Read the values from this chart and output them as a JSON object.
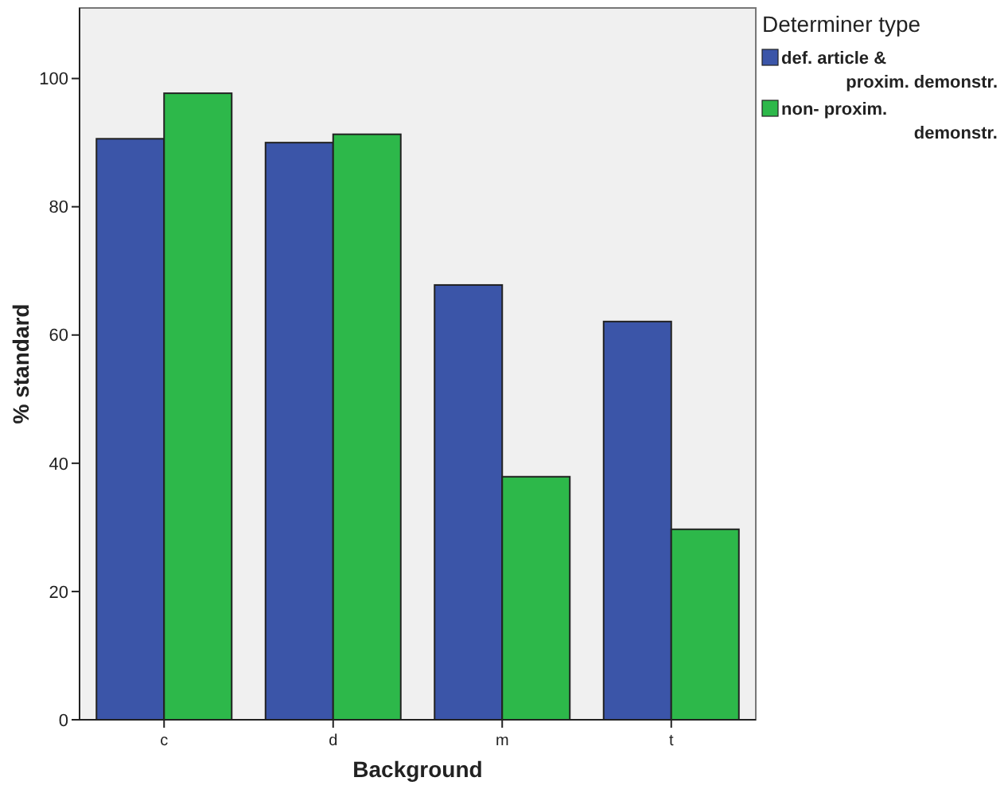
{
  "chart_data": {
    "type": "bar",
    "xlabel": "Background",
    "ylabel": "% standard",
    "legend_title": "Determiner type",
    "categories": [
      "c",
      "d",
      "m",
      "t"
    ],
    "series": [
      {
        "name": "def. article & proxim. demonstr.",
        "color": "#3b55a8",
        "values": [
          90.6,
          90.0,
          67.8,
          62.1
        ]
      },
      {
        "name": "non- proxim. demonstr.",
        "color": "#2db84a",
        "values": [
          97.7,
          91.3,
          37.9,
          29.7
        ]
      }
    ],
    "ylim": [
      0,
      111
    ],
    "yticks": [
      0,
      20,
      40,
      60,
      80,
      100
    ],
    "legend": "right"
  }
}
